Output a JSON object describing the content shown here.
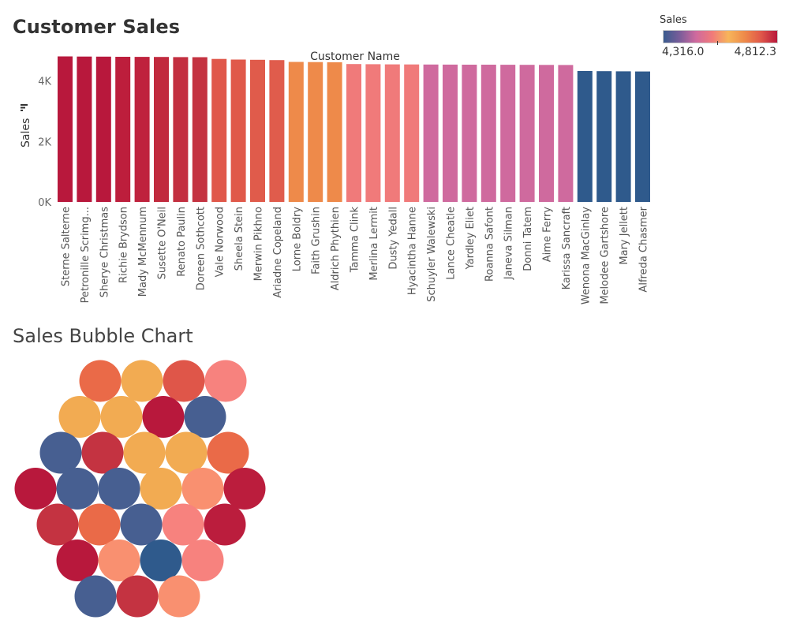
{
  "page": {
    "title": "Customer Sales",
    "bubble_title": "Sales Bubble Chart"
  },
  "legend": {
    "title": "Sales",
    "min_label": "4,316.0",
    "max_label": "4,812.3",
    "gradient_colors": [
      "#3a5b8e",
      "#7a5d9a",
      "#cf6a9e",
      "#f07a7a",
      "#f7b55a",
      "#ee8a4a",
      "#e0584a",
      "#b8183c"
    ]
  },
  "chart_data": [
    {
      "type": "bar",
      "title": "Customer Sales",
      "xlabel": "Customer Name",
      "ylabel": "Sales",
      "ylim": [
        0,
        4800
      ],
      "yticks": [
        0,
        2000,
        4000
      ],
      "ytick_labels": [
        "0K",
        "2K",
        "4K"
      ],
      "categories": [
        "Sterne Salterne",
        "Petronille Scrimg...",
        "Sherye Christmas",
        "Richie Brydson",
        "Mady McMennum",
        "Susette O'Neil",
        "Renato Paulin",
        "Doreen Sothcott",
        "Vale Norwood",
        "Sheela Stein",
        "Merwin Pikhno",
        "Ariadne Copeland",
        "Lorne Boldry",
        "Faith Grushin",
        "Aldrich Phythien",
        "Tamma Clink",
        "Merlina Lermit",
        "Dusty Yedall",
        "Hyacintha Hanne",
        "Schuyler Walewski",
        "Lance Cheatle",
        "Yardley Eliet",
        "Roanna Safont",
        "Janeva Silman",
        "Donni Tatem",
        "Aime Ferry",
        "Karissa Sancraft",
        "Wenona MacGinlay",
        "Melodee Gartshore",
        "Mary Jellett",
        "Alfreda Chasmer"
      ],
      "values": [
        4812.3,
        4808,
        4805,
        4800,
        4797,
        4794,
        4790,
        4787,
        4730,
        4710,
        4700,
        4690,
        4630,
        4625,
        4620,
        4560,
        4555,
        4550,
        4548,
        4545,
        4543,
        4540,
        4538,
        4536,
        4534,
        4532,
        4530,
        4330,
        4325,
        4320,
        4316.0
      ],
      "colors": [
        "#b8183c",
        "#b8183c",
        "#b8183c",
        "#bd1e3c",
        "#bf223d",
        "#c12a3e",
        "#c32f40",
        "#c43341",
        "#e0584a",
        "#e0594a",
        "#e05b4b",
        "#e05c4c",
        "#ee8a4a",
        "#ee8a4a",
        "#ee8a4a",
        "#f07a7a",
        "#f07a7a",
        "#f07a7a",
        "#f07a7a",
        "#cf6a9e",
        "#cf6a9e",
        "#cf6a9e",
        "#cf6a9e",
        "#cf6a9e",
        "#cf6a9e",
        "#cf6a9e",
        "#cf6a9e",
        "#2f5a8c",
        "#2f5a8c",
        "#2f5a8c",
        "#2f5a8c"
      ]
    },
    {
      "type": "bubble",
      "title": "Sales Bubble Chart",
      "bubbles": [
        {
          "color": "#ea6a48"
        },
        {
          "color": "#f2ab52"
        },
        {
          "color": "#df5649"
        },
        {
          "color": "#f7827e"
        },
        {
          "color": "#f2ab52"
        },
        {
          "color": "#f2ab52"
        },
        {
          "color": "#b8183c"
        },
        {
          "color": "#475f91"
        },
        {
          "color": "#475f91"
        },
        {
          "color": "#c43341"
        },
        {
          "color": "#f2ab52"
        },
        {
          "color": "#f2ab52"
        },
        {
          "color": "#ea6a48"
        },
        {
          "color": "#b8183c"
        },
        {
          "color": "#475f91"
        },
        {
          "color": "#475f91"
        },
        {
          "color": "#f2ab52"
        },
        {
          "color": "#f99070"
        },
        {
          "color": "#bb1d3d"
        },
        {
          "color": "#c43341"
        },
        {
          "color": "#ea6a48"
        },
        {
          "color": "#475f91"
        },
        {
          "color": "#f7827e"
        },
        {
          "color": "#bb1d3d"
        },
        {
          "color": "#b8183c"
        },
        {
          "color": "#f99070"
        },
        {
          "color": "#2f5a8c"
        },
        {
          "color": "#f7827e"
        },
        {
          "color": "#475f91"
        },
        {
          "color": "#c43341"
        },
        {
          "color": "#f99070"
        }
      ]
    }
  ]
}
